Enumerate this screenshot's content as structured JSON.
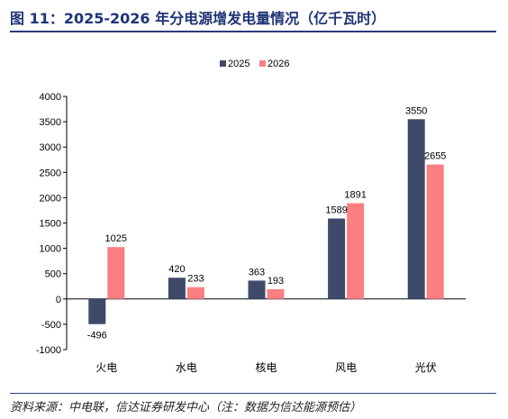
{
  "header": {
    "title": "图 11：2025-2026 年分电源增发电量情况（亿千瓦时）"
  },
  "footer": {
    "source": "资料来源：中电联，信达证券研发中心（注：数据为信达能源预估）"
  },
  "chart_data": {
    "type": "bar",
    "categories": [
      "火电",
      "水电",
      "核电",
      "风电",
      "光伏"
    ],
    "series": [
      {
        "name": "2025",
        "values": [
          -496,
          420,
          363,
          1589,
          3550
        ],
        "color": "#3f4a6b"
      },
      {
        "name": "2026",
        "values": [
          1025,
          233,
          193,
          1891,
          2655
        ],
        "color": "#fb7f80"
      }
    ],
    "ylim": [
      -1000,
      4000
    ],
    "yticks": [
      -1000,
      -500,
      0,
      500,
      1000,
      1500,
      2000,
      2500,
      3000,
      3500,
      4000
    ],
    "grid": false,
    "legend_position": "top-center",
    "data_labels": true
  }
}
